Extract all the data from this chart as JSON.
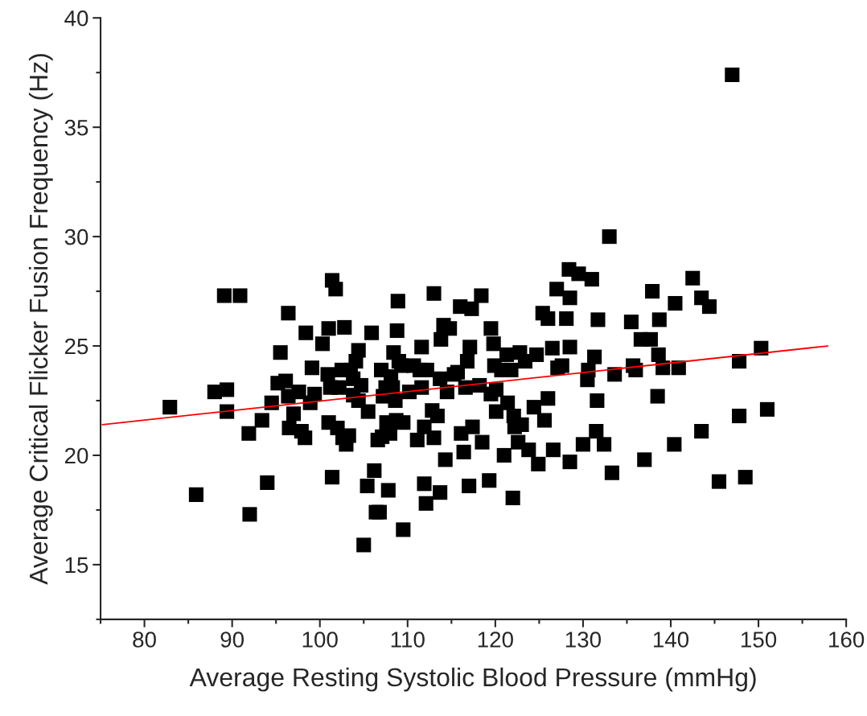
{
  "chart_data": {
    "type": "scatter",
    "xlabel": "Average Resting Systolic Blood Pressure (mmHg)",
    "ylabel": "Average Critical Flicker Fusion Frequency (Hz)",
    "xlim": [
      75,
      160
    ],
    "ylim": [
      12.5,
      40
    ],
    "xticks": [
      80,
      90,
      100,
      110,
      120,
      130,
      140,
      150,
      160
    ],
    "yticks": [
      15,
      20,
      25,
      30,
      35,
      40
    ],
    "grid": false,
    "legend": false,
    "marker": "square",
    "series": [
      {
        "color": "#000000",
        "x": [
          82.9,
          85.9,
          88.0,
          89.1,
          89.4,
          89.4,
          90.9,
          91.9,
          92.0,
          93.4,
          94.0,
          94.5,
          95.2,
          95.5,
          96.1,
          96.4,
          96.4,
          96.5,
          97.0,
          97.6,
          97.9,
          98.3,
          98.4,
          98.9,
          99.1,
          99.4,
          100.3,
          100.9,
          101.0,
          101.0,
          101.2,
          101.4,
          101.4,
          101.8,
          102.0,
          102.2,
          102.5,
          102.6,
          102.8,
          103.0,
          103.3,
          103.5,
          103.8,
          103.8,
          104.1,
          104.4,
          104.4,
          104.7,
          105.0,
          105.4,
          105.5,
          105.9,
          106.2,
          106.4,
          106.6,
          106.8,
          107.0,
          107.1,
          107.2,
          107.5,
          107.6,
          107.8,
          108.0,
          108.1,
          108.3,
          108.4,
          108.6,
          108.7,
          108.8,
          108.9,
          109.0,
          109.3,
          109.5,
          109.5,
          110.2,
          110.7,
          111.1,
          111.4,
          111.6,
          111.6,
          111.9,
          111.9,
          112.1,
          112.2,
          112.8,
          113.0,
          113.0,
          113.4,
          113.7,
          113.7,
          113.8,
          114.1,
          114.3,
          114.5,
          114.8,
          115.3,
          115.7,
          116.0,
          116.1,
          116.4,
          116.6,
          116.8,
          117.0,
          117.1,
          117.3,
          117.4,
          118.2,
          118.4,
          118.5,
          119.3,
          119.5,
          119.5,
          119.8,
          119.9,
          120.1,
          120.1,
          120.7,
          121.0,
          121.3,
          121.4,
          121.8,
          122.0,
          122.1,
          122.2,
          122.6,
          122.8,
          123.0,
          123.4,
          123.8,
          124.4,
          124.7,
          124.9,
          125.4,
          125.6,
          126.0,
          126.0,
          126.5,
          126.6,
          127.0,
          127.1,
          127.6,
          128.1,
          128.4,
          128.5,
          128.5,
          128.5,
          129.5,
          130.0,
          130.5,
          130.6,
          131.0,
          131.3,
          131.5,
          131.6,
          131.7,
          132.4,
          133.0,
          133.3,
          133.6,
          135.5,
          135.7,
          136.0,
          136.6,
          137.0,
          137.7,
          137.9,
          138.5,
          138.6,
          138.7,
          139.1,
          140.4,
          140.5,
          140.9,
          142.5,
          143.5,
          143.5,
          144.4,
          145.5,
          147.0,
          147.8,
          147.8,
          148.5,
          150.3,
          151.0
        ],
        "values": [
          22.2,
          18.2,
          22.9,
          27.3,
          22.0,
          23.0,
          27.3,
          21.0,
          17.3,
          21.6,
          18.75,
          22.4,
          23.3,
          24.7,
          23.4,
          26.5,
          22.7,
          21.25,
          21.9,
          22.9,
          21.1,
          20.8,
          25.6,
          22.4,
          24.0,
          22.8,
          25.1,
          23.7,
          25.8,
          21.5,
          23.1,
          19.0,
          28.0,
          27.6,
          21.25,
          23.1,
          23.9,
          20.8,
          25.85,
          20.5,
          20.9,
          23.9,
          23.5,
          22.75,
          24.3,
          24.8,
          22.5,
          23.2,
          15.9,
          18.6,
          22.0,
          25.6,
          19.3,
          17.4,
          20.7,
          17.4,
          23.9,
          20.85,
          22.7,
          23.1,
          21.5,
          18.4,
          21.0,
          23.6,
          23.1,
          24.7,
          22.5,
          21.6,
          25.7,
          27.05,
          24.3,
          24.1,
          16.6,
          21.5,
          22.9,
          24.1,
          20.7,
          23.9,
          24.95,
          23.1,
          21.3,
          18.7,
          17.8,
          23.9,
          22.05,
          27.4,
          20.8,
          21.8,
          23.5,
          18.3,
          25.3,
          25.95,
          19.8,
          22.9,
          25.8,
          23.7,
          23.8,
          26.8,
          21.0,
          20.15,
          23.1,
          24.3,
          18.6,
          24.95,
          26.7,
          21.3,
          23.2,
          27.3,
          20.6,
          18.85,
          22.8,
          25.8,
          25.1,
          24.1,
          23.0,
          22.0,
          23.9,
          20.0,
          24.6,
          22.4,
          23.9,
          18.05,
          21.8,
          21.3,
          20.6,
          24.7,
          21.4,
          24.3,
          20.25,
          22.2,
          24.6,
          19.6,
          26.5,
          21.6,
          22.6,
          26.25,
          24.9,
          20.25,
          27.6,
          24.0,
          24.1,
          26.25,
          28.5,
          27.2,
          24.95,
          19.7,
          28.3,
          20.5,
          23.45,
          23.9,
          28.05,
          24.5,
          21.1,
          22.5,
          26.2,
          20.5,
          30.0,
          19.2,
          23.7,
          26.1,
          24.1,
          23.9,
          25.3,
          19.8,
          25.3,
          27.5,
          22.7,
          24.6,
          26.2,
          24.0,
          20.5,
          26.95,
          24.0,
          28.1,
          27.2,
          21.1,
          26.8,
          18.8,
          37.4,
          24.3,
          21.8,
          19.0,
          24.9,
          22.1
        ]
      },
      {
        "type": "line",
        "color": "#ff0000",
        "marker": "none",
        "x": [
          75.2,
          157.9
        ],
        "values": [
          21.4,
          25.0
        ]
      }
    ]
  }
}
